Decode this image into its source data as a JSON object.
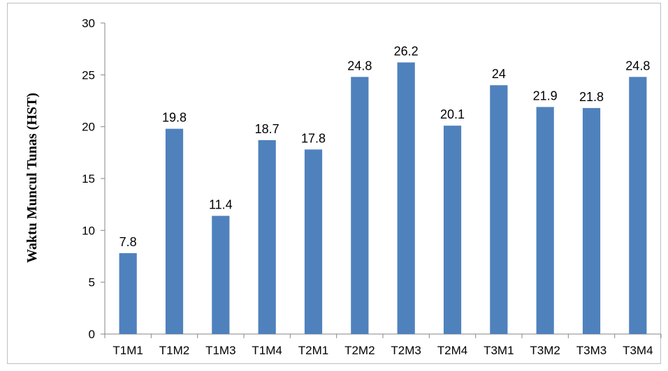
{
  "chart_data": {
    "type": "bar",
    "ylabel": "Waktu Muncul Tunas (HST)",
    "xlabel": "",
    "categories": [
      "T1M1",
      "T1M2",
      "T1M3",
      "T1M4",
      "T2M1",
      "T2M2",
      "T2M3",
      "T2M4",
      "T3M1",
      "T3M2",
      "T3M3",
      "T3M4"
    ],
    "values": [
      7.8,
      19.8,
      11.4,
      18.7,
      17.8,
      24.8,
      26.2,
      20.1,
      24,
      21.9,
      21.8,
      24.8
    ],
    "value_labels": [
      "7.8",
      "19.8",
      "11.4",
      "18.7",
      "17.8",
      "24.8",
      "26.2",
      "20.1",
      "24",
      "21.9",
      "21.8",
      "24.8"
    ],
    "ylim": [
      0,
      30
    ],
    "yticks": [
      0,
      5,
      10,
      15,
      20,
      25,
      30
    ],
    "grid": false,
    "legend": "none",
    "bar_color": "#4f81bd"
  }
}
